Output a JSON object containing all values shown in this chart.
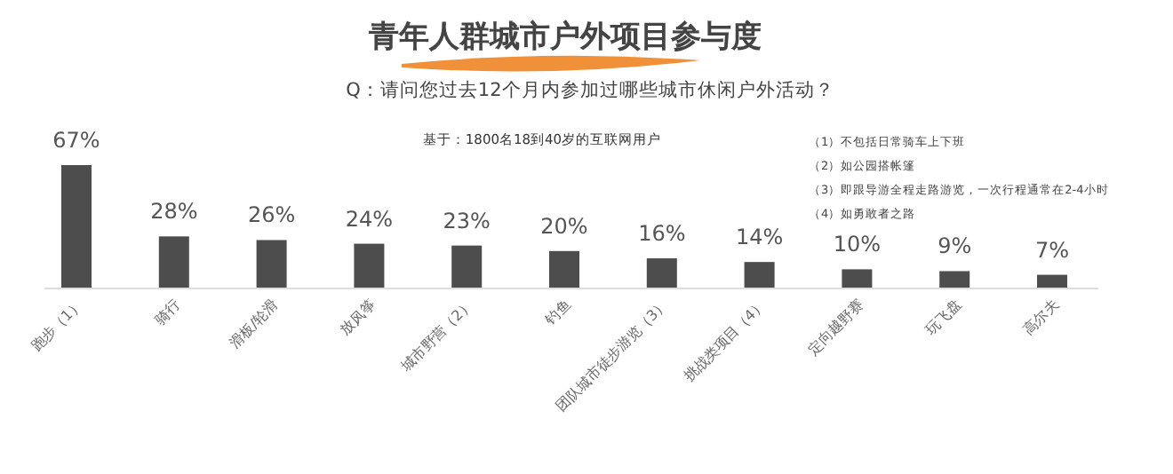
{
  "chart_data": {
    "type": "bar",
    "title": "青年人群城市户外项目参与度",
    "subtitle": "Q：请问您过去12个月内参加过哪些城市休闲户外活动？",
    "annotations": [
      "基于：1800名18到40岁的互联网用户",
      "（1）不包括日常骑车上下班",
      "（2）如公园搭帐篷",
      "（3）即跟导游全程走路游览，一次行程通常在2-4小时",
      "（4）如勇敢者之路"
    ],
    "categories": [
      "跑步（1）",
      "骑行",
      "滑板/轮滑",
      "放风筝",
      "城市野营（2）",
      "钓鱼",
      "团队城市徒步游览（3）",
      "挑战类项目（4）",
      "定向越野赛",
      "玩飞盘",
      "高尔夫"
    ],
    "values": [
      67,
      28,
      26,
      24,
      23,
      20,
      16,
      14,
      10,
      9,
      7
    ],
    "value_labels": [
      "67%",
      "28%",
      "26%",
      "24%",
      "23%",
      "20%",
      "16%",
      "14%",
      "10%",
      "9%",
      "7%"
    ],
    "color": "#4d4d4d"
  }
}
